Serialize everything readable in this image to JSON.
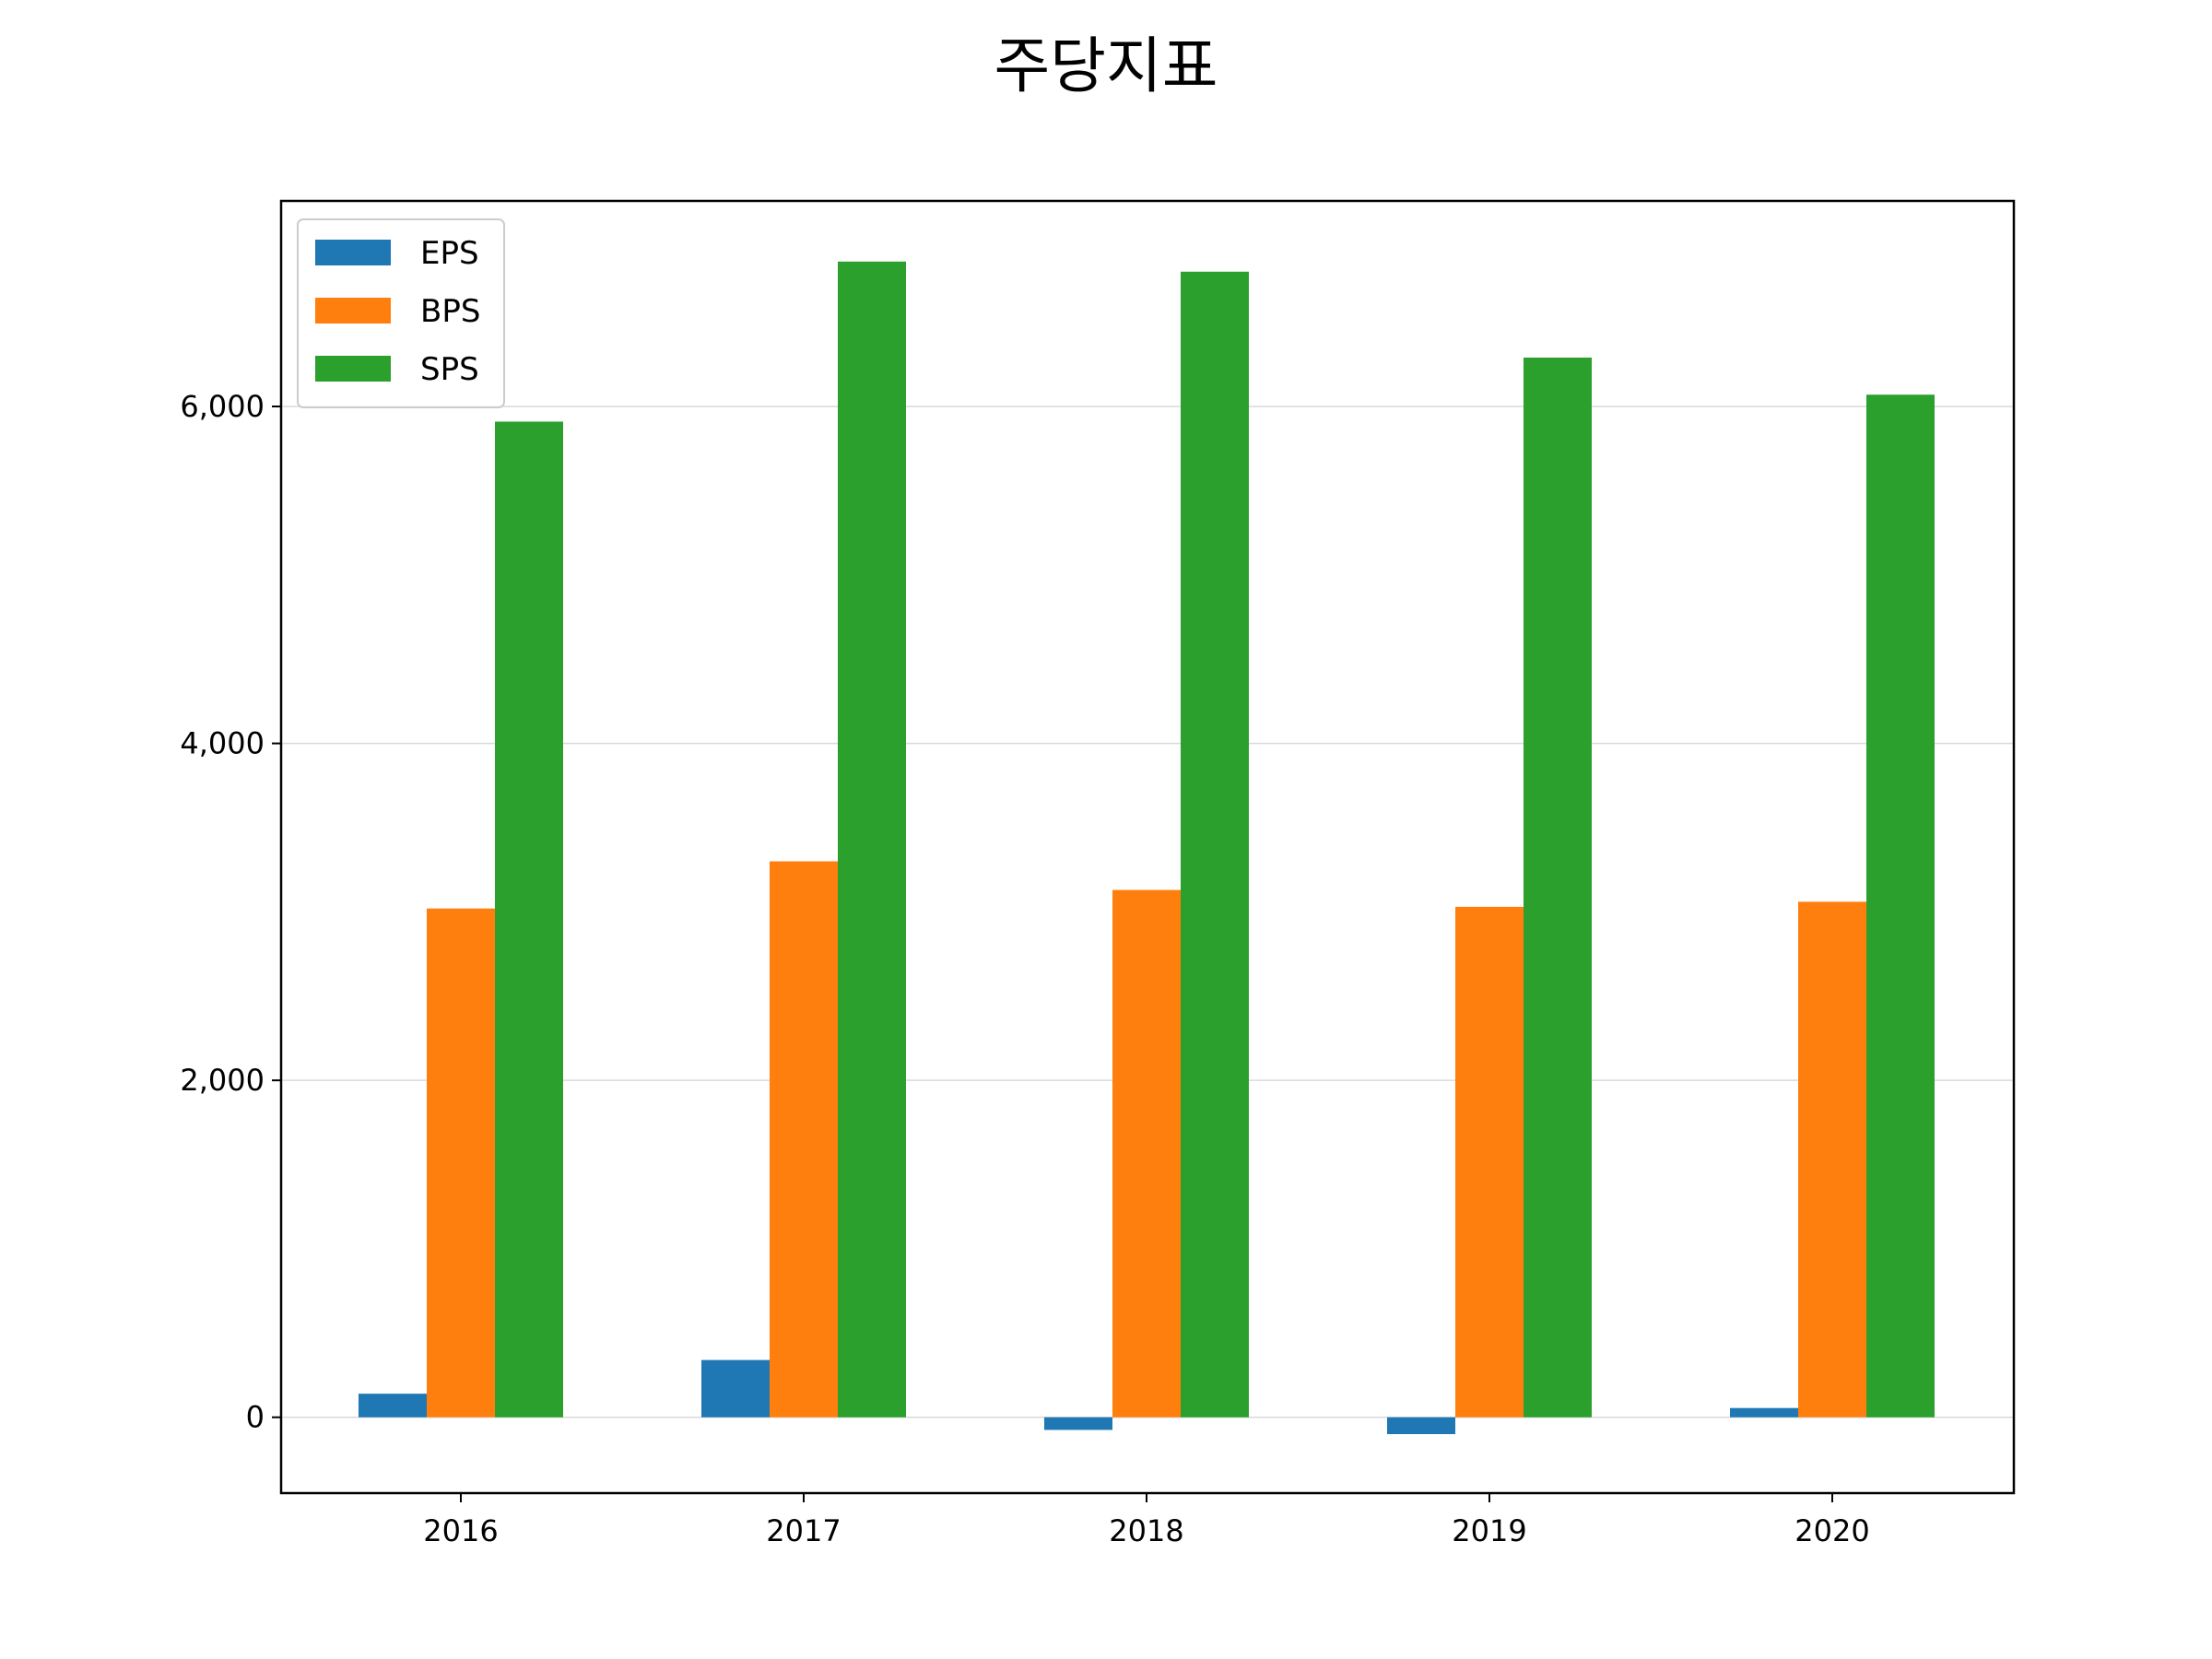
{
  "title": "주당지표",
  "chart_data": {
    "type": "bar",
    "title": "주당지표",
    "xlabel": "",
    "ylabel": "",
    "categories": [
      "2016",
      "2017",
      "2018",
      "2019",
      "2020"
    ],
    "series": [
      {
        "name": "EPS",
        "color": "#1f77b4",
        "values": [
          140,
          340,
          -75,
          -100,
          55
        ]
      },
      {
        "name": "BPS",
        "color": "#ff7f0e",
        "values": [
          3020,
          3300,
          3130,
          3030,
          3060
        ]
      },
      {
        "name": "SPS",
        "color": "#2ca02c",
        "values": [
          5910,
          6860,
          6800,
          6290,
          6070
        ]
      }
    ],
    "ylim": [
      -450,
      7220
    ],
    "yticks": [
      0,
      2000,
      4000,
      6000
    ],
    "ytick_labels": [
      "0",
      "2,000",
      "4,000",
      "6,000"
    ],
    "grid": "horizontal",
    "legend": "upper-left"
  }
}
